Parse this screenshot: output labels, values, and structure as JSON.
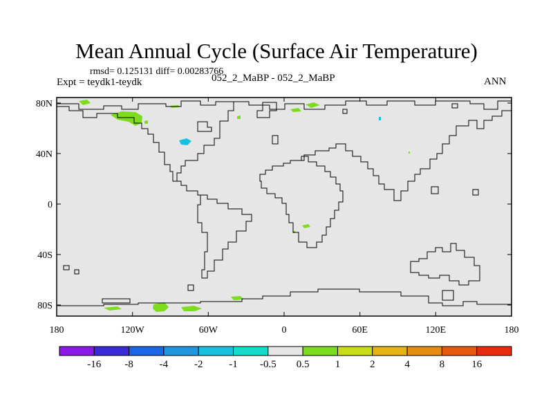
{
  "title": "Mean Annual Cycle (Surface Air Temperature)",
  "stats": "rmsd= 0.125131 diff= 0.00283766",
  "experiment": "Expt = teydk1-teydk",
  "runs": "052_2_MaBP - 052_2_MaBP",
  "season": "ANN",
  "lat_labels": [
    "80N",
    "40N",
    "0",
    "40S",
    "80S"
  ],
  "lon_labels": [
    "180",
    "120W",
    "60W",
    "0",
    "60E",
    "120E",
    "180"
  ],
  "colorbar": {
    "labels": [
      "-16",
      "-8",
      "-4",
      "-2",
      "-1",
      "-0.5",
      "0.5",
      "1",
      "2",
      "4",
      "8",
      "16"
    ],
    "colors": [
      "#8a18e6",
      "#3a2ad8",
      "#1a66e6",
      "#1e96e0",
      "#18c0e0",
      "#14dcc8",
      "#e6e6e6",
      "#7ddc1f",
      "#c8dc1a",
      "#e6b414",
      "#e68c10",
      "#e65a10",
      "#e62e0e"
    ]
  },
  "colors": {
    "background": "#e6e6e6",
    "positive": "#7ddc1f",
    "negative": "#18c0e0",
    "coast": "#000000"
  }
}
